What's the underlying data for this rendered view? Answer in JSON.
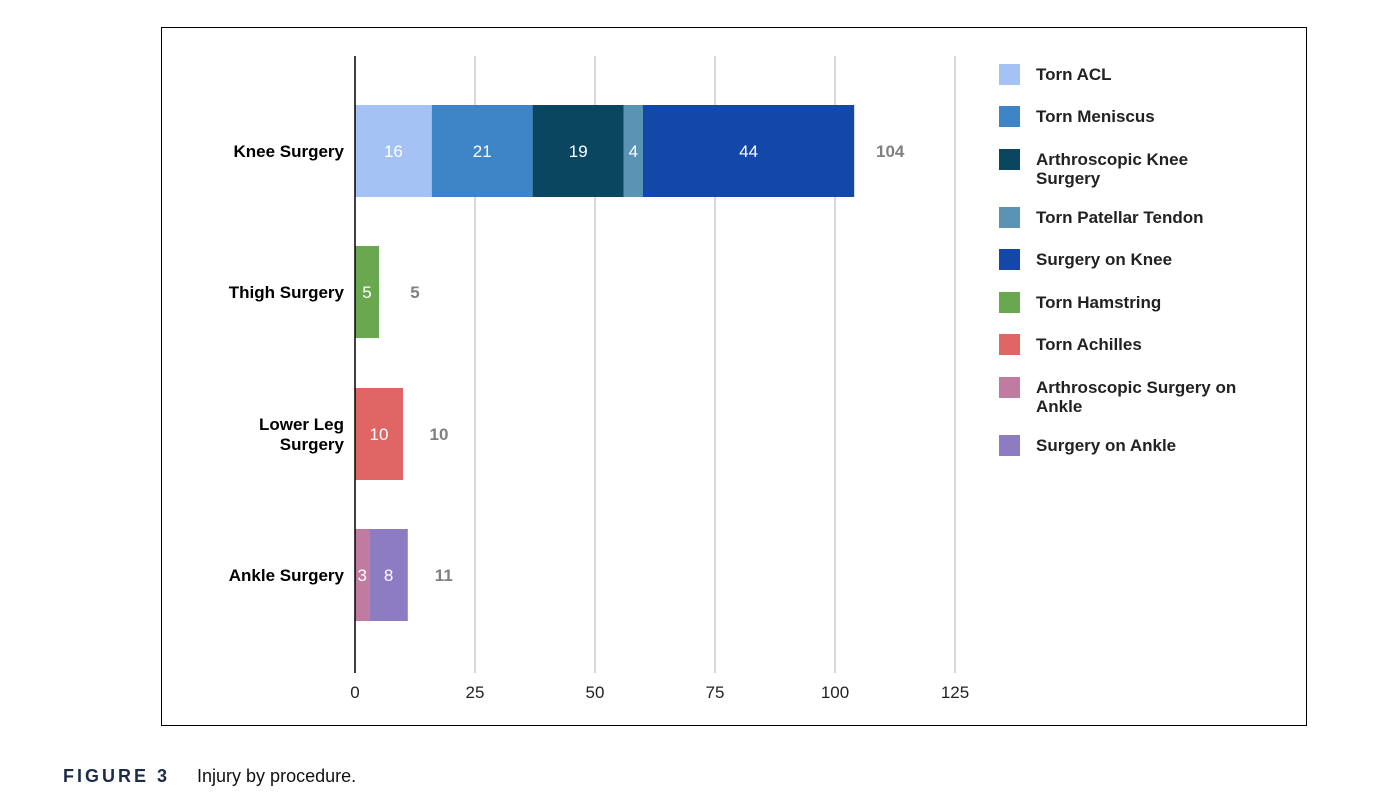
{
  "figure": {
    "label": "FIGURE 3",
    "caption": "Injury by procedure."
  },
  "chart_data": {
    "type": "bar",
    "orientation": "horizontal",
    "stacked": true,
    "categories": [
      "Knee Surgery",
      "Thigh Surgery",
      "Lower Leg Surgery",
      "Ankle Surgery"
    ],
    "category_lines": [
      [
        "Knee Surgery"
      ],
      [
        "Thigh Surgery"
      ],
      [
        "Lower Leg",
        "Surgery"
      ],
      [
        "Ankle Surgery"
      ]
    ],
    "series": [
      {
        "name": "Torn ACL",
        "color": "#a4c2f4",
        "values": [
          16,
          0,
          0,
          0
        ]
      },
      {
        "name": "Torn Meniscus",
        "color": "#3d85c6",
        "values": [
          21,
          0,
          0,
          0
        ]
      },
      {
        "name": "Arthroscopic Knee Surgery",
        "legend_lines": [
          "Arthroscopic Knee",
          "Surgery"
        ],
        "color": "#0b4660",
        "values": [
          19,
          0,
          0,
          0
        ]
      },
      {
        "name": "Torn Patellar Tendon",
        "color": "#5b93b4",
        "values": [
          4,
          0,
          0,
          0
        ]
      },
      {
        "name": "Surgery on Knee",
        "color": "#1448a8",
        "values": [
          44,
          0,
          0,
          0
        ]
      },
      {
        "name": "Torn Hamstring",
        "color": "#6aa84f",
        "values": [
          0,
          5,
          0,
          0
        ]
      },
      {
        "name": "Torn Achilles",
        "color": "#e06666",
        "values": [
          0,
          0,
          10,
          0
        ]
      },
      {
        "name": "Arthroscopic Surgery on Ankle",
        "legend_lines": [
          "Arthroscopic Surgery on",
          "Ankle"
        ],
        "color": "#c27ba0",
        "values": [
          0,
          0,
          0,
          3
        ]
      },
      {
        "name": "Surgery on Ankle",
        "color": "#8e7cc3",
        "values": [
          0,
          0,
          0,
          8
        ]
      }
    ],
    "totals": [
      104,
      5,
      10,
      11
    ],
    "xlim": [
      0,
      125
    ],
    "xticks": [
      0,
      25,
      50,
      75,
      100,
      125
    ],
    "grid": true,
    "legend_position": "right",
    "title": "",
    "xlabel": "",
    "ylabel": ""
  }
}
